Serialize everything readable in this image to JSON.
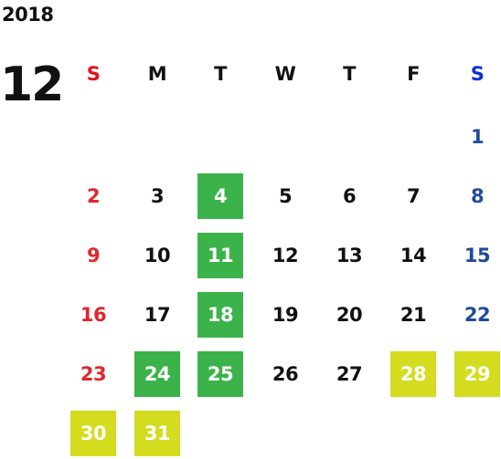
{
  "calendar": {
    "year": "2018",
    "month": "12",
    "weekdays": [
      "S",
      "M",
      "T",
      "W",
      "T",
      "F",
      "S"
    ],
    "colors": {
      "sunday": "#e0262b",
      "saturday": "#1f4b9a",
      "weekday": "#111111",
      "green_highlight": "#3bb34a",
      "yellow_highlight": "#d3dc1e"
    },
    "weeks": [
      [
        "",
        "",
        "",
        "",
        "",
        "",
        "1"
      ],
      [
        "2",
        "3",
        "4",
        "5",
        "6",
        "7",
        "8"
      ],
      [
        "9",
        "10",
        "11",
        "12",
        "13",
        "14",
        "15"
      ],
      [
        "16",
        "17",
        "18",
        "19",
        "20",
        "21",
        "22"
      ],
      [
        "23",
        "24",
        "25",
        "26",
        "27",
        "28",
        "29"
      ],
      [
        "30",
        "31",
        "",
        "",
        "",
        "",
        ""
      ]
    ],
    "green_days": [
      "4",
      "11",
      "18",
      "24",
      "25"
    ],
    "yellow_days": [
      "28",
      "29",
      "30",
      "31"
    ]
  }
}
